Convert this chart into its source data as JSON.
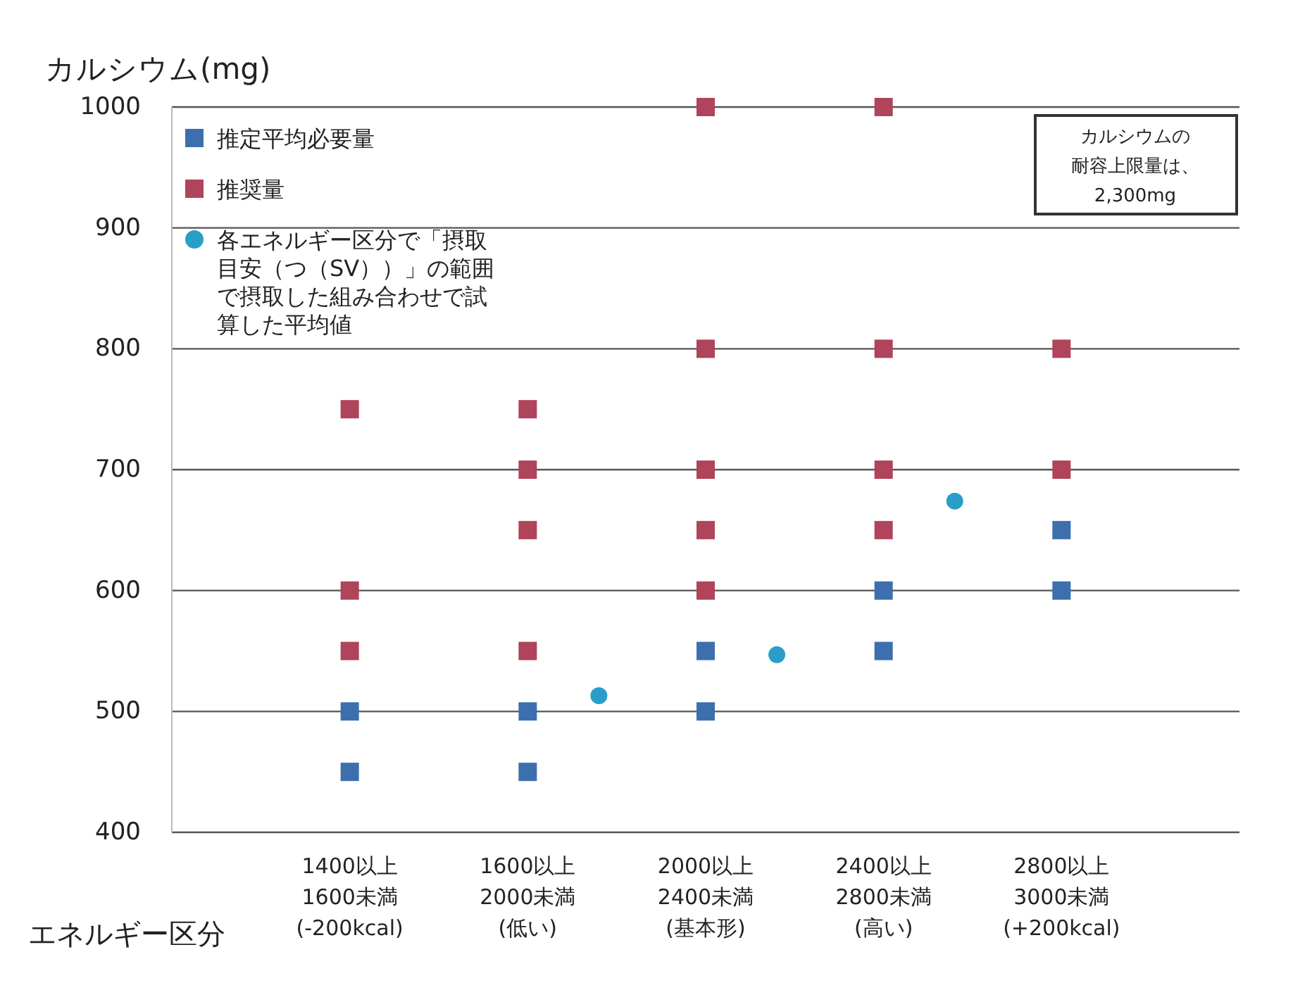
{
  "chart_data": {
    "type": "scatter",
    "ylabel": "カルシウム(mg)",
    "xlabel": "エネルギー区分",
    "categories": [
      "1400以上\n1600未満\n(-200kcal)",
      "1600以上\n2000未満\n(低い)",
      "2000以上\n2400未満\n(基本形)",
      "2400以上\n2800未満\n(高い)",
      "2800以上\n3000未満\n(+200kcal)"
    ],
    "ylim": [
      400,
      1000
    ],
    "yticks": [
      400,
      500,
      600,
      700,
      800,
      900,
      1000
    ],
    "grid": "y",
    "legend": "top left",
    "series": [
      {
        "name": "推定平均必要量",
        "color": "#3d6fae",
        "marker": "square",
        "values": [
          500,
          500,
          550,
          600,
          650
        ]
      },
      {
        "color": "#3d6fae",
        "marker": "square",
        "values": [
          450,
          450,
          500,
          550,
          600
        ]
      },
      {
        "name": "推奨量",
        "color": "#b0445a",
        "marker": "square",
        "values": [
          750,
          750,
          1000,
          1000,
          800
        ]
      },
      {
        "color": "#b0445a",
        "marker": "square",
        "values": [
          600,
          700,
          800,
          800,
          700
        ]
      },
      {
        "color": "#b0445a",
        "marker": "square",
        "values": [
          550,
          650,
          700,
          700,
          null
        ]
      },
      {
        "color": "#b0445a",
        "marker": "square",
        "values": [
          null,
          550,
          650,
          650,
          null
        ]
      },
      {
        "color": "#b0445a",
        "marker": "square",
        "values": [
          null,
          null,
          600,
          null,
          null
        ]
      },
      {
        "name": "各エネルギー区分で「摂取目安（つ（SV））」の範囲で摂取した組み合わせで試算した平均値",
        "color": "#2a9ec8",
        "marker": "circle",
        "values": [
          null,
          513,
          547,
          674,
          null
        ]
      }
    ],
    "annotations": [
      "カルシウムの耐容上限量は、2,300mg"
    ]
  }
}
